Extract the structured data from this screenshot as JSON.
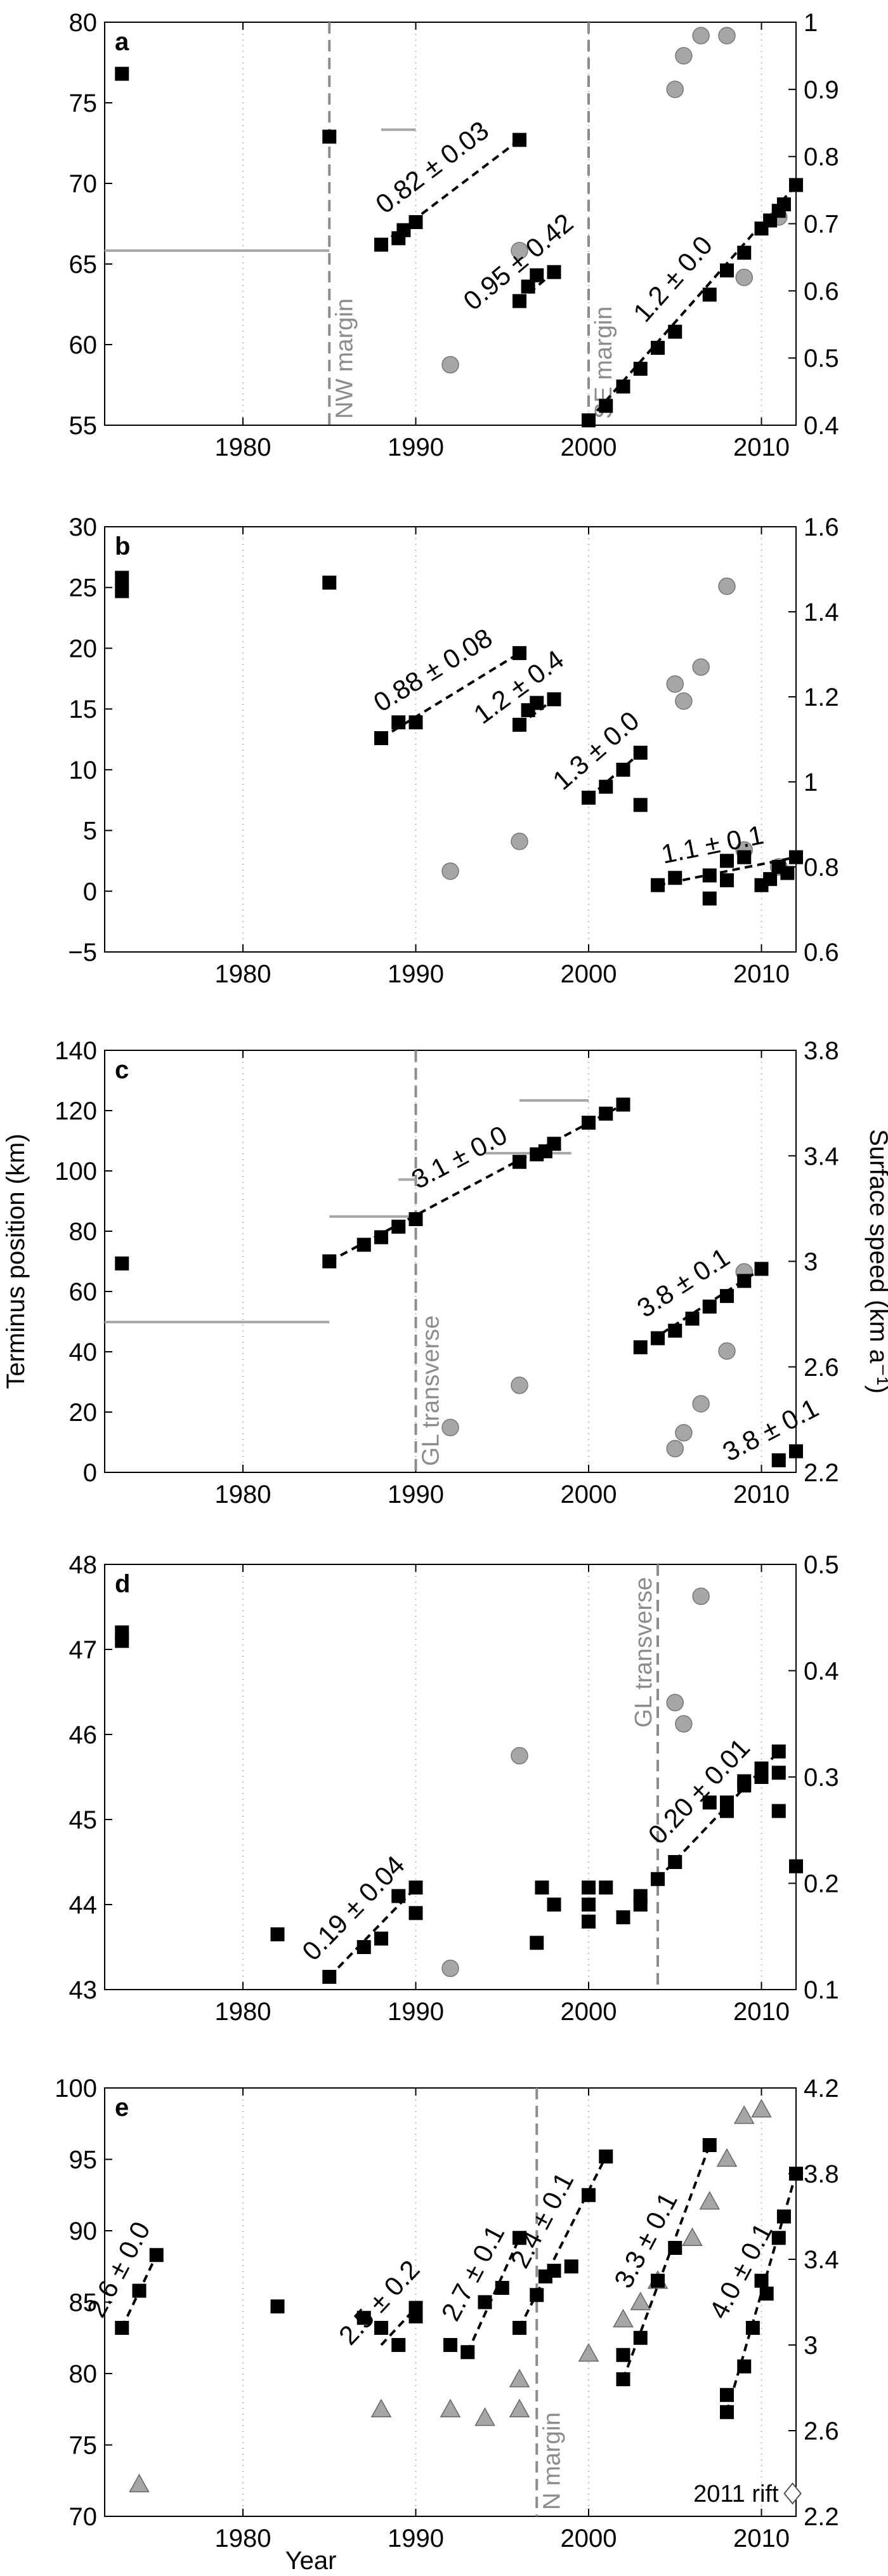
{
  "figure": {
    "shared_xlabel": "Year",
    "shared_ylabel_left": "Terminus position (km)",
    "shared_ylabel_right": "Surface speed (km a⁻¹)"
  },
  "colors": {
    "terminus_marker": "#000000",
    "speed_marker": "#a6a6a6",
    "annotation": "#8c8c8c",
    "fit_line": "#000000",
    "grid": "#bfbfbf",
    "frame": "#000000"
  },
  "chart_data": [
    {
      "panel": "a",
      "type": "scatter",
      "xlim": [
        1972,
        2012
      ],
      "xticks": [
        1980,
        1990,
        2000,
        2010
      ],
      "ylim_left": [
        55,
        80
      ],
      "yticks_left": [
        55,
        60,
        65,
        70,
        75,
        80
      ],
      "ylim_right": [
        0.4,
        1.0
      ],
      "yticks_right": [
        "0.4",
        "0.5",
        "0.6",
        "0.7",
        "0.8",
        "0.9",
        "1"
      ],
      "grid": "x-only, dotted",
      "terminus": [
        [
          1973,
          76.8
        ],
        [
          1985,
          72.9
        ],
        [
          1988,
          66.2
        ],
        [
          1989,
          66.6
        ],
        [
          1989.3,
          67.1
        ],
        [
          1990,
          67.6
        ],
        [
          1996,
          72.7
        ],
        [
          1996,
          62.7
        ],
        [
          1996.5,
          63.6
        ],
        [
          1997,
          64.3
        ],
        [
          1998,
          64.5
        ],
        [
          2000,
          55.3
        ],
        [
          2001,
          56.2
        ],
        [
          2002,
          57.4
        ],
        [
          2003,
          58.5
        ],
        [
          2004,
          59.8
        ],
        [
          2005,
          60.8
        ],
        [
          2007,
          63.1
        ],
        [
          2008,
          64.6
        ],
        [
          2009,
          65.7
        ],
        [
          2010,
          67.2
        ],
        [
          2010.5,
          67.7
        ],
        [
          2011,
          68.3
        ],
        [
          2011.3,
          68.7
        ],
        [
          2012,
          69.9
        ]
      ],
      "speed": [
        [
          1992,
          0.49
        ],
        [
          1996,
          0.66
        ],
        [
          2005,
          0.9
        ],
        [
          2005.5,
          0.95
        ],
        [
          2006.5,
          0.98
        ],
        [
          2008,
          0.98
        ],
        [
          2009,
          0.62
        ],
        [
          2011,
          0.71
        ]
      ],
      "speed_intervals": [
        [
          1972,
          1985,
          0.66
        ],
        [
          1988,
          1990,
          0.84
        ]
      ],
      "fits": [
        {
          "label": "0.82 ± 0.03",
          "x": [
            1988,
            1996
          ],
          "y": [
            66.2,
            72.7
          ]
        },
        {
          "label": "0.95 ± 0.42",
          "x": [
            1996,
            1998
          ],
          "y": [
            62.7,
            64.5
          ]
        },
        {
          "label": "1.2 ± 0.0",
          "x": [
            2000,
            2012
          ],
          "y": [
            55.3,
            69.9
          ]
        }
      ],
      "vlines": [
        {
          "x": 1985,
          "label": "NW margin"
        },
        {
          "x": 2000,
          "label": "SE margin"
        }
      ]
    },
    {
      "panel": "b",
      "type": "scatter",
      "xlim": [
        1972,
        2012
      ],
      "xticks": [
        1980,
        1990,
        2000,
        2010
      ],
      "ylim_left": [
        -5,
        30
      ],
      "yticks_left": [
        -5,
        0,
        5,
        10,
        15,
        20,
        25,
        30
      ],
      "ylim_right": [
        0.6,
        1.6
      ],
      "yticks_right": [
        "0.6",
        "0.8",
        "1",
        "1.2",
        "1.4",
        "1.6"
      ],
      "grid": "x-only, dotted",
      "terminus": [
        [
          1973,
          25.8
        ],
        [
          1973,
          24.7
        ],
        [
          1985,
          25.4
        ],
        [
          1988,
          12.6
        ],
        [
          1989,
          13.9
        ],
        [
          1990,
          13.9
        ],
        [
          1996,
          19.6
        ],
        [
          1996,
          13.7
        ],
        [
          1996.5,
          14.9
        ],
        [
          1997,
          15.5
        ],
        [
          1998,
          15.8
        ],
        [
          2000,
          7.7
        ],
        [
          2001,
          8.6
        ],
        [
          2002,
          10.0
        ],
        [
          2003,
          11.4
        ],
        [
          2003,
          7.1
        ],
        [
          2004,
          0.5
        ],
        [
          2005,
          1.1
        ],
        [
          2007,
          1.3
        ],
        [
          2007,
          -0.6
        ],
        [
          2008,
          2.5
        ],
        [
          2008,
          0.9
        ],
        [
          2009,
          2.8
        ],
        [
          2010,
          0.5
        ],
        [
          2010.5,
          1.0
        ],
        [
          2011,
          2.0
        ],
        [
          2011.5,
          1.5
        ],
        [
          2012,
          2.8
        ]
      ],
      "speed": [
        [
          1992,
          0.79
        ],
        [
          1996,
          0.86
        ],
        [
          2005,
          1.23
        ],
        [
          2005.5,
          1.19
        ],
        [
          2006.5,
          1.27
        ],
        [
          2008,
          1.46
        ],
        [
          2009,
          0.84
        ],
        [
          2011,
          0.8
        ]
      ],
      "fits": [
        {
          "label": "0.88 ± 0.08",
          "x": [
            1988,
            1996
          ],
          "y": [
            12.6,
            19.6
          ]
        },
        {
          "label": "1.2 ± 0.4",
          "x": [
            1996,
            1998
          ],
          "y": [
            13.7,
            15.8
          ]
        },
        {
          "label": "1.3 ± 0.0",
          "x": [
            2000,
            2003
          ],
          "y": [
            7.7,
            11.4
          ]
        },
        {
          "label": "1.1 ± 0.1",
          "x": [
            2004,
            2012
          ],
          "y": [
            0.5,
            2.8
          ]
        }
      ],
      "vlines": []
    },
    {
      "panel": "c",
      "type": "scatter",
      "xlim": [
        1972,
        2012
      ],
      "xticks": [
        1980,
        1990,
        2000,
        2010
      ],
      "ylim_left": [
        0,
        140
      ],
      "yticks_left": [
        0,
        20,
        40,
        60,
        80,
        100,
        120,
        140
      ],
      "ylim_right": [
        2.2,
        3.8
      ],
      "yticks_right": [
        "2.2",
        "2.6",
        "3",
        "3.4",
        "3.8"
      ],
      "grid": "x-only, dotted",
      "terminus": [
        [
          1973,
          69.3
        ],
        [
          1985,
          70.0
        ],
        [
          1987,
          75.5
        ],
        [
          1988,
          78.0
        ],
        [
          1989,
          81.5
        ],
        [
          1990,
          84.0
        ],
        [
          1996,
          103.0
        ],
        [
          1997,
          105.5
        ],
        [
          1997.5,
          106.5
        ],
        [
          1998,
          109.0
        ],
        [
          2000,
          116.0
        ],
        [
          2001,
          119.0
        ],
        [
          2002,
          122.0
        ],
        [
          2003,
          41.5
        ],
        [
          2004,
          44.5
        ],
        [
          2005,
          47.0
        ],
        [
          2006,
          51.0
        ],
        [
          2007,
          55.0
        ],
        [
          2008,
          58.5
        ],
        [
          2009,
          63.5
        ],
        [
          2010,
          67.5
        ],
        [
          2011,
          4.0
        ],
        [
          2012,
          7.0
        ]
      ],
      "speed": [
        [
          1992,
          2.37
        ],
        [
          1996,
          2.53
        ],
        [
          2005,
          2.29
        ],
        [
          2005.5,
          2.35
        ],
        [
          2006.5,
          2.46
        ],
        [
          2008,
          2.66
        ],
        [
          2009,
          2.96
        ]
      ],
      "speed_intervals": [
        [
          1972,
          1985,
          2.77
        ],
        [
          1985,
          1990,
          3.17
        ],
        [
          1989,
          1990,
          3.31
        ],
        [
          1994,
          1999,
          3.41
        ],
        [
          1996,
          2000,
          3.61
        ]
      ],
      "fits": [
        {
          "label": "3.1 ± 0.0",
          "x": [
            1985,
            2002
          ],
          "y": [
            70.0,
            122.0
          ]
        },
        {
          "label": "3.8 ± 0.1",
          "x": [
            2003,
            2010
          ],
          "y": [
            41.5,
            67.5
          ]
        },
        {
          "label": "3.8 ± 0.1",
          "x": [
            2011,
            2012
          ],
          "y": [
            4.0,
            7.0
          ]
        }
      ],
      "vlines": [
        {
          "x": 1990,
          "label": "GL transverse"
        }
      ]
    },
    {
      "panel": "d",
      "type": "scatter",
      "xlim": [
        1972,
        2012
      ],
      "xticks": [
        1980,
        1990,
        2000,
        2010
      ],
      "ylim_left": [
        43,
        48
      ],
      "yticks_left": [
        43,
        44,
        45,
        46,
        47,
        48
      ],
      "ylim_right": [
        0.1,
        0.5
      ],
      "yticks_right": [
        "0.1",
        "0.2",
        "0.3",
        "0.4",
        "0.5"
      ],
      "grid": "x-only, dotted",
      "terminus": [
        [
          1973,
          47.2
        ],
        [
          1973,
          47.1
        ],
        [
          1982,
          43.65
        ],
        [
          1985,
          43.15
        ],
        [
          1987,
          43.5
        ],
        [
          1988,
          43.6
        ],
        [
          1989,
          44.1
        ],
        [
          1990,
          44.2
        ],
        [
          1990,
          43.9
        ],
        [
          1997,
          43.55
        ],
        [
          1997.3,
          44.2
        ],
        [
          1998,
          44.0
        ],
        [
          2000,
          44.2
        ],
        [
          2000,
          44.0
        ],
        [
          2000,
          43.8
        ],
        [
          2001,
          44.2
        ],
        [
          2002,
          43.85
        ],
        [
          2003,
          44.1
        ],
        [
          2003,
          44.0
        ],
        [
          2004,
          44.3
        ],
        [
          2005,
          44.5
        ],
        [
          2007,
          45.2
        ],
        [
          2008,
          45.2
        ],
        [
          2008,
          45.1
        ],
        [
          2009,
          45.4
        ],
        [
          2009,
          45.45
        ],
        [
          2010,
          45.6
        ],
        [
          2010,
          45.5
        ],
        [
          2011,
          45.8
        ],
        [
          2011,
          45.1
        ],
        [
          2011,
          45.55
        ],
        [
          2012,
          44.45
        ]
      ],
      "speed": [
        [
          1992,
          0.12
        ],
        [
          1996,
          0.32
        ],
        [
          2005,
          0.37
        ],
        [
          2005.5,
          0.35
        ],
        [
          2006.5,
          0.47
        ]
      ],
      "fits": [
        {
          "label": "0.19 ± 0.04",
          "x": [
            1985,
            1990
          ],
          "y": [
            43.15,
            44.2
          ]
        },
        {
          "label": "0.20 ± 0.01",
          "x": [
            2004,
            2011
          ],
          "y": [
            44.3,
            45.8
          ]
        }
      ],
      "vlines": [
        {
          "x": 2004,
          "label": "GL transverse"
        }
      ]
    },
    {
      "panel": "e",
      "type": "scatter",
      "xlim": [
        1972,
        2012
      ],
      "xticks": [
        1980,
        1990,
        2000,
        2010
      ],
      "ylim_left": [
        70,
        100
      ],
      "yticks_left": [
        70,
        75,
        80,
        85,
        90,
        95,
        100
      ],
      "ylim_right": [
        2.2,
        4.2
      ],
      "yticks_right": [
        "2.2",
        "2.6",
        "3",
        "3.4",
        "3.8",
        "4.2"
      ],
      "grid": "x-only, dotted",
      "xlabel": "Year",
      "terminus": [
        [
          1973,
          83.2
        ],
        [
          1974,
          85.8
        ],
        [
          1975,
          88.3
        ],
        [
          1982,
          84.7
        ],
        [
          1987,
          83.9
        ],
        [
          1988,
          83.2
        ],
        [
          1989,
          82.0
        ],
        [
          1990,
          84.0
        ],
        [
          1990,
          84.6
        ],
        [
          1992,
          82.0
        ],
        [
          1993,
          81.5
        ],
        [
          1994,
          85.0
        ],
        [
          1995,
          86.0
        ],
        [
          1996,
          89.5
        ],
        [
          1996,
          83.2
        ],
        [
          1997,
          85.5
        ],
        [
          1997.5,
          86.8
        ],
        [
          1998,
          87.2
        ],
        [
          1999,
          87.5
        ],
        [
          2000,
          92.5
        ],
        [
          2001,
          95.2
        ],
        [
          2002,
          79.6
        ],
        [
          2002,
          81.3
        ],
        [
          2003,
          82.5
        ],
        [
          2004,
          86.5
        ],
        [
          2005,
          88.8
        ],
        [
          2007,
          96.0
        ],
        [
          2008,
          77.3
        ],
        [
          2008,
          78.5
        ],
        [
          2009,
          80.5
        ],
        [
          2009.5,
          83.2
        ],
        [
          2010,
          86.5
        ],
        [
          2010.3,
          85.6
        ],
        [
          2011,
          89.5
        ],
        [
          2011.3,
          91.0
        ],
        [
          2012,
          94.0
        ]
      ],
      "speed": [
        [
          1974,
          2.35
        ],
        [
          1988,
          2.7
        ],
        [
          1992,
          2.7
        ],
        [
          1994,
          2.66
        ],
        [
          1996,
          2.7
        ],
        [
          1996,
          2.84
        ],
        [
          2000,
          2.96
        ],
        [
          2002,
          3.12
        ],
        [
          2003,
          3.2
        ],
        [
          2004,
          3.3
        ],
        [
          2006,
          3.5
        ],
        [
          2007,
          3.67
        ],
        [
          2008,
          3.87
        ],
        [
          2009,
          4.07
        ],
        [
          2010,
          4.1
        ]
      ],
      "fits": [
        {
          "label": "2.6 ± 0.0",
          "x": [
            1973,
            1975
          ],
          "y": [
            83.2,
            88.3
          ]
        },
        {
          "label": "2.5 ± 0.2",
          "x": [
            1988,
            1990
          ],
          "y": [
            82.0,
            84.6
          ]
        },
        {
          "label": "2.7 ± 0.1",
          "x": [
            1993,
            1996
          ],
          "y": [
            81.5,
            89.5
          ]
        },
        {
          "label": "2.4 ± 0.1",
          "x": [
            1996,
            2001
          ],
          "y": [
            83.2,
            95.2
          ]
        },
        {
          "label": "3.3 ± 0.1",
          "x": [
            2002,
            2007
          ],
          "y": [
            79.6,
            96.0
          ]
        },
        {
          "label": "4.0 ± 0.1",
          "x": [
            2008,
            2012
          ],
          "y": [
            77.3,
            94.0
          ]
        }
      ],
      "vlines": [
        {
          "x": 1997,
          "label": "N margin"
        }
      ],
      "rift": {
        "label": "2011 rift",
        "x": 2011.8,
        "y": 71.6
      }
    }
  ]
}
